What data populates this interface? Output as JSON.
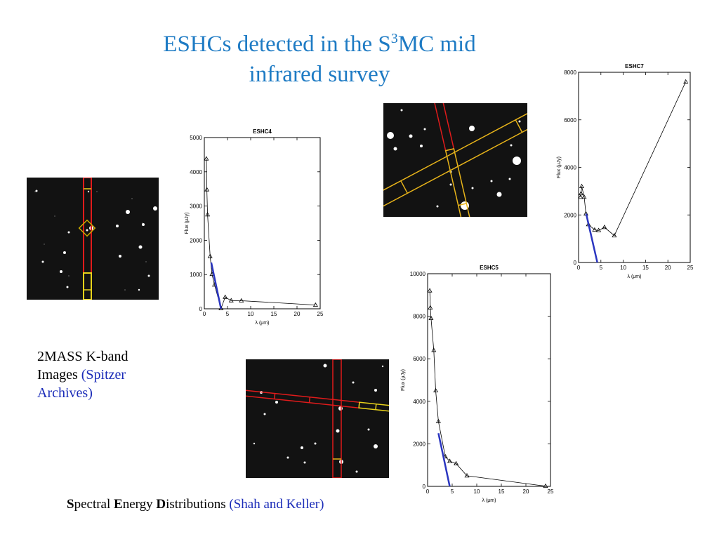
{
  "title": {
    "line1_a": "ESHCs detected in the S",
    "line1_sup": "3",
    "line1_b": "MC mid",
    "line2": "infrared survey"
  },
  "caption": {
    "text": "2MASS K-band Images ",
    "source": "(Spitzer Archives)"
  },
  "footer": {
    "s_bold": "S",
    "s_rest": "pectral ",
    "e_bold": "E",
    "e_rest": "nergy ",
    "d_bold": "D",
    "d_rest": "istributions ",
    "citation": "(Shah and Keller)"
  },
  "chart_data": [
    {
      "type": "line",
      "title": "ESHC4",
      "xlabel": "λ (μm)",
      "ylabel": "Flux (μJy)",
      "xlim": [
        0,
        25
      ],
      "ylim": [
        0,
        5000
      ],
      "xticks": [
        0,
        5,
        10,
        15,
        20,
        25
      ],
      "yticks": [
        0,
        1000,
        2000,
        3000,
        4000,
        5000
      ],
      "points": [
        [
          0.44,
          4380
        ],
        [
          0.55,
          3480
        ],
        [
          0.7,
          2750
        ],
        [
          1.25,
          1530
        ],
        [
          1.65,
          1010
        ],
        [
          2.2,
          700
        ],
        [
          3.6,
          10
        ],
        [
          4.5,
          340
        ],
        [
          5.8,
          240
        ],
        [
          8.0,
          235
        ],
        [
          24,
          110
        ]
      ],
      "fit": [
        [
          1.5,
          1350
        ],
        [
          3.6,
          0
        ]
      ]
    },
    {
      "type": "line",
      "title": "ESHC7",
      "xlabel": "λ (μm)",
      "ylabel": "Flux (μJy)",
      "xlim": [
        0,
        25
      ],
      "ylim": [
        0,
        8000
      ],
      "xticks": [
        0,
        5,
        10,
        15,
        20,
        25
      ],
      "yticks": [
        0,
        2000,
        4000,
        6000,
        8000
      ],
      "points": [
        [
          0.44,
          2750
        ],
        [
          0.55,
          2900
        ],
        [
          0.7,
          3200
        ],
        [
          1.25,
          2750
        ],
        [
          1.65,
          2050
        ],
        [
          2.2,
          1600
        ],
        [
          3.6,
          1370
        ],
        [
          4.5,
          1350
        ],
        [
          5.8,
          1480
        ],
        [
          8.0,
          1130
        ],
        [
          24,
          7600
        ]
      ],
      "fit": [
        [
          1.7,
          2050
        ],
        [
          4.2,
          0
        ]
      ]
    },
    {
      "type": "line",
      "title": "ESHC5",
      "xlabel": "λ (μm)",
      "ylabel": "Flux (μJy)",
      "xlim": [
        0,
        25
      ],
      "ylim": [
        0,
        10000
      ],
      "xticks": [
        0,
        5,
        10,
        15,
        20,
        25
      ],
      "yticks": [
        0,
        2000,
        4000,
        6000,
        8000,
        10000
      ],
      "points": [
        [
          0.44,
          9200
        ],
        [
          0.55,
          8400
        ],
        [
          0.7,
          7900
        ],
        [
          1.25,
          6400
        ],
        [
          1.65,
          4500
        ],
        [
          2.2,
          3050
        ],
        [
          3.6,
          1400
        ],
        [
          4.5,
          1180
        ],
        [
          5.8,
          1070
        ],
        [
          8.0,
          500
        ],
        [
          24,
          10
        ]
      ],
      "fit": [
        [
          2.2,
          2500
        ],
        [
          4.5,
          0
        ]
      ]
    }
  ]
}
